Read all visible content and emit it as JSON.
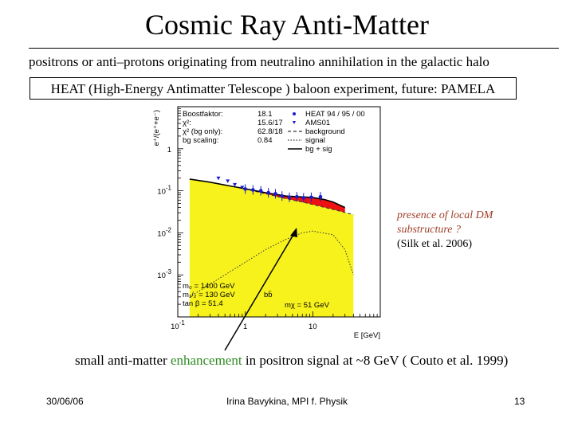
{
  "title": "Cosmic Ray Anti-Matter",
  "subtitle": "positrons or anti–protons originating from neutralino annihilation in the galactic halo",
  "experiment": "HEAT (High-Energy Antimatter Telescope ) baloon experiment, future: PAMELA",
  "note": {
    "line1": "presence of local DM",
    "line2": "substructure ?",
    "line3": "(Silk et al. 2006)"
  },
  "caption": {
    "before": "small anti-matter ",
    "highlight": "enhancement",
    "after": " in positron signal at ~8 GeV ( Couto et al. 1999)"
  },
  "footer": {
    "date": "30/06/06",
    "author": "Irina Bavykina, MPI f. Physik",
    "page": "13"
  },
  "colors": {
    "note_text": "#a0402a",
    "highlight": "#2e8b22",
    "background_fill": "#f7f21c",
    "signal_fill": "#ee1111",
    "data_points": "#1a1ad0"
  },
  "chart_data": {
    "type": "line",
    "ylabel": "e⁺/(e⁺+e⁻)",
    "xlabel": "E [GeV]",
    "x_scale": "log",
    "y_scale": "log",
    "xlim": [
      0.1,
      100
    ],
    "ylim": [
      0.0001,
      10
    ],
    "x_ticks": [
      {
        "value": 0.1,
        "base": "10",
        "exp": "-1"
      },
      {
        "value": 1,
        "base": "1",
        "exp": ""
      },
      {
        "value": 10,
        "base": "10",
        "exp": ""
      }
    ],
    "y_ticks": [
      {
        "value": 1,
        "base": "1",
        "exp": ""
      },
      {
        "value": 0.1,
        "base": "10",
        "exp": "-1"
      },
      {
        "value": 0.01,
        "base": "10",
        "exp": "-2"
      },
      {
        "value": 0.001,
        "base": "10",
        "exp": "-3"
      }
    ],
    "info_box": [
      {
        "key": "Boostfaktor:",
        "value": "18.1"
      },
      {
        "key": "χ²:",
        "value": "15.6/17"
      },
      {
        "key": "χ² (bg only):",
        "value": "62.8/18"
      },
      {
        "key": "bg scaling:",
        "value": "0.84"
      }
    ],
    "legend": [
      {
        "name": "HEAT 94 / 95 / 00",
        "style": "dot"
      },
      {
        "name": "AMS01",
        "style": "triangle"
      },
      {
        "name": "background",
        "style": "dashed"
      },
      {
        "name": "signal",
        "style": "dotted"
      },
      {
        "name": "bg + sig",
        "style": "solid"
      }
    ],
    "params": [
      "m₀ = 1400 GeV",
      "m₁/₂ = 130 GeV",
      "tan β = 51.4"
    ],
    "channel_label": "bb̄",
    "mchi_label": "mχ = 51 GeV",
    "background": {
      "x": [
        0.15,
        0.3,
        0.6,
        1.0,
        2.0,
        4.0,
        7.0,
        10.0,
        20.0,
        40.0
      ],
      "y": [
        0.19,
        0.16,
        0.13,
        0.11,
        0.085,
        0.065,
        0.054,
        0.047,
        0.036,
        0.027
      ]
    },
    "total": {
      "x": [
        0.15,
        0.3,
        0.6,
        1.0,
        2.0,
        4.0,
        6.0,
        8.0,
        10.0,
        15.0,
        20.0,
        30.0
      ],
      "y": [
        0.19,
        0.16,
        0.13,
        0.112,
        0.09,
        0.075,
        0.072,
        0.071,
        0.069,
        0.062,
        0.054,
        0.04
      ]
    },
    "signal": {
      "x": [
        0.15,
        0.3,
        0.6,
        1.0,
        2.0,
        4.0,
        7.0,
        10.0,
        20.0,
        30.0,
        40.0
      ],
      "y": [
        0.0003,
        0.0006,
        0.0012,
        0.002,
        0.004,
        0.007,
        0.01,
        0.011,
        0.009,
        0.004,
        0.001
      ]
    },
    "heat_points": {
      "x": [
        1.0,
        1.3,
        1.7,
        2.2,
        2.8,
        3.5,
        4.5,
        5.8,
        7.3,
        9.5,
        13.0
      ],
      "y": [
        0.11,
        0.105,
        0.1,
        0.09,
        0.085,
        0.075,
        0.07,
        0.072,
        0.068,
        0.07,
        0.072
      ]
    },
    "ams_points": {
      "x": [
        0.4,
        0.55,
        0.7,
        0.9
      ],
      "y": [
        0.2,
        0.17,
        0.14,
        0.12
      ]
    }
  }
}
